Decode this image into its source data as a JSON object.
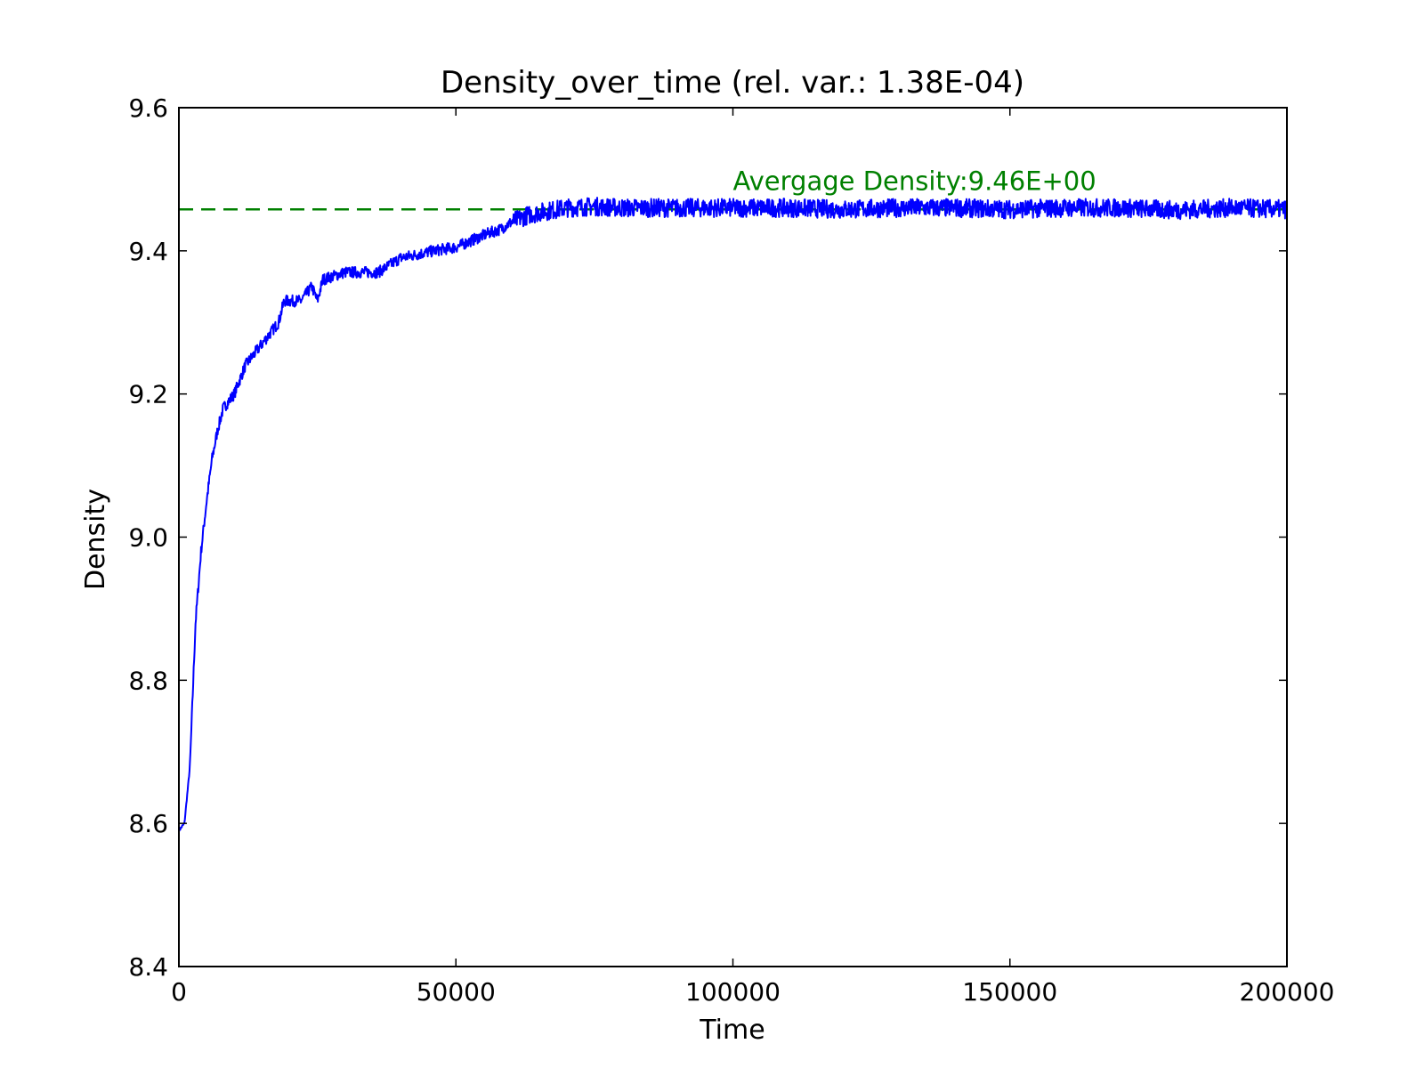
{
  "chart_data": {
    "type": "line",
    "title": "Density_over_time (rel. var.: 1.38E-04)",
    "xlabel": "Time",
    "ylabel": "Density",
    "xlim": [
      0,
      200000
    ],
    "ylim": [
      8.4,
      9.6
    ],
    "xticks": [
      0,
      50000,
      100000,
      150000,
      200000
    ],
    "xtick_labels": [
      "0",
      "50000",
      "100000",
      "150000",
      "200000"
    ],
    "yticks": [
      8.4,
      8.6,
      8.8,
      9.0,
      9.2,
      9.4,
      9.6
    ],
    "ytick_labels": [
      "8.4",
      "8.6",
      "8.8",
      "9.0",
      "9.2",
      "9.4",
      "9.6"
    ],
    "grid": false,
    "series": [
      {
        "color": "#0000ff",
        "points": [
          [
            0,
            8.59
          ],
          [
            1000,
            8.6
          ],
          [
            2000,
            8.68
          ],
          [
            3000,
            8.88
          ],
          [
            4000,
            8.98
          ],
          [
            5000,
            9.05
          ],
          [
            6000,
            9.11
          ],
          [
            7000,
            9.15
          ],
          [
            8000,
            9.18
          ],
          [
            10000,
            9.2
          ],
          [
            12000,
            9.24
          ],
          [
            14000,
            9.26
          ],
          [
            16000,
            9.28
          ],
          [
            18000,
            9.3
          ],
          [
            19000,
            9.33
          ],
          [
            22000,
            9.33
          ],
          [
            24000,
            9.35
          ],
          [
            25000,
            9.33
          ],
          [
            26000,
            9.36
          ],
          [
            28000,
            9.365
          ],
          [
            30000,
            9.37
          ],
          [
            33000,
            9.37
          ],
          [
            36000,
            9.37
          ],
          [
            38000,
            9.38
          ],
          [
            40000,
            9.39
          ],
          [
            43000,
            9.395
          ],
          [
            46000,
            9.4
          ],
          [
            50000,
            9.405
          ],
          [
            53000,
            9.415
          ],
          [
            56000,
            9.425
          ],
          [
            58000,
            9.43
          ],
          [
            60000,
            9.44
          ],
          [
            63000,
            9.45
          ],
          [
            66000,
            9.455
          ],
          [
            70000,
            9.46
          ],
          [
            75000,
            9.462
          ],
          [
            80000,
            9.46
          ],
          [
            90000,
            9.46
          ],
          [
            100000,
            9.46
          ],
          [
            110000,
            9.46
          ],
          [
            120000,
            9.458
          ],
          [
            130000,
            9.46
          ],
          [
            140000,
            9.46
          ],
          [
            150000,
            9.458
          ],
          [
            160000,
            9.46
          ],
          [
            170000,
            9.46
          ],
          [
            180000,
            9.457
          ],
          [
            190000,
            9.46
          ],
          [
            200000,
            9.458
          ]
        ]
      }
    ],
    "reference_line": {
      "y": 9.458,
      "color": "#008000",
      "style": "dashed"
    },
    "annotation": {
      "text": "Avergage Density:9.46E+00",
      "x": 100000,
      "y": 9.485,
      "color": "#008000"
    }
  }
}
